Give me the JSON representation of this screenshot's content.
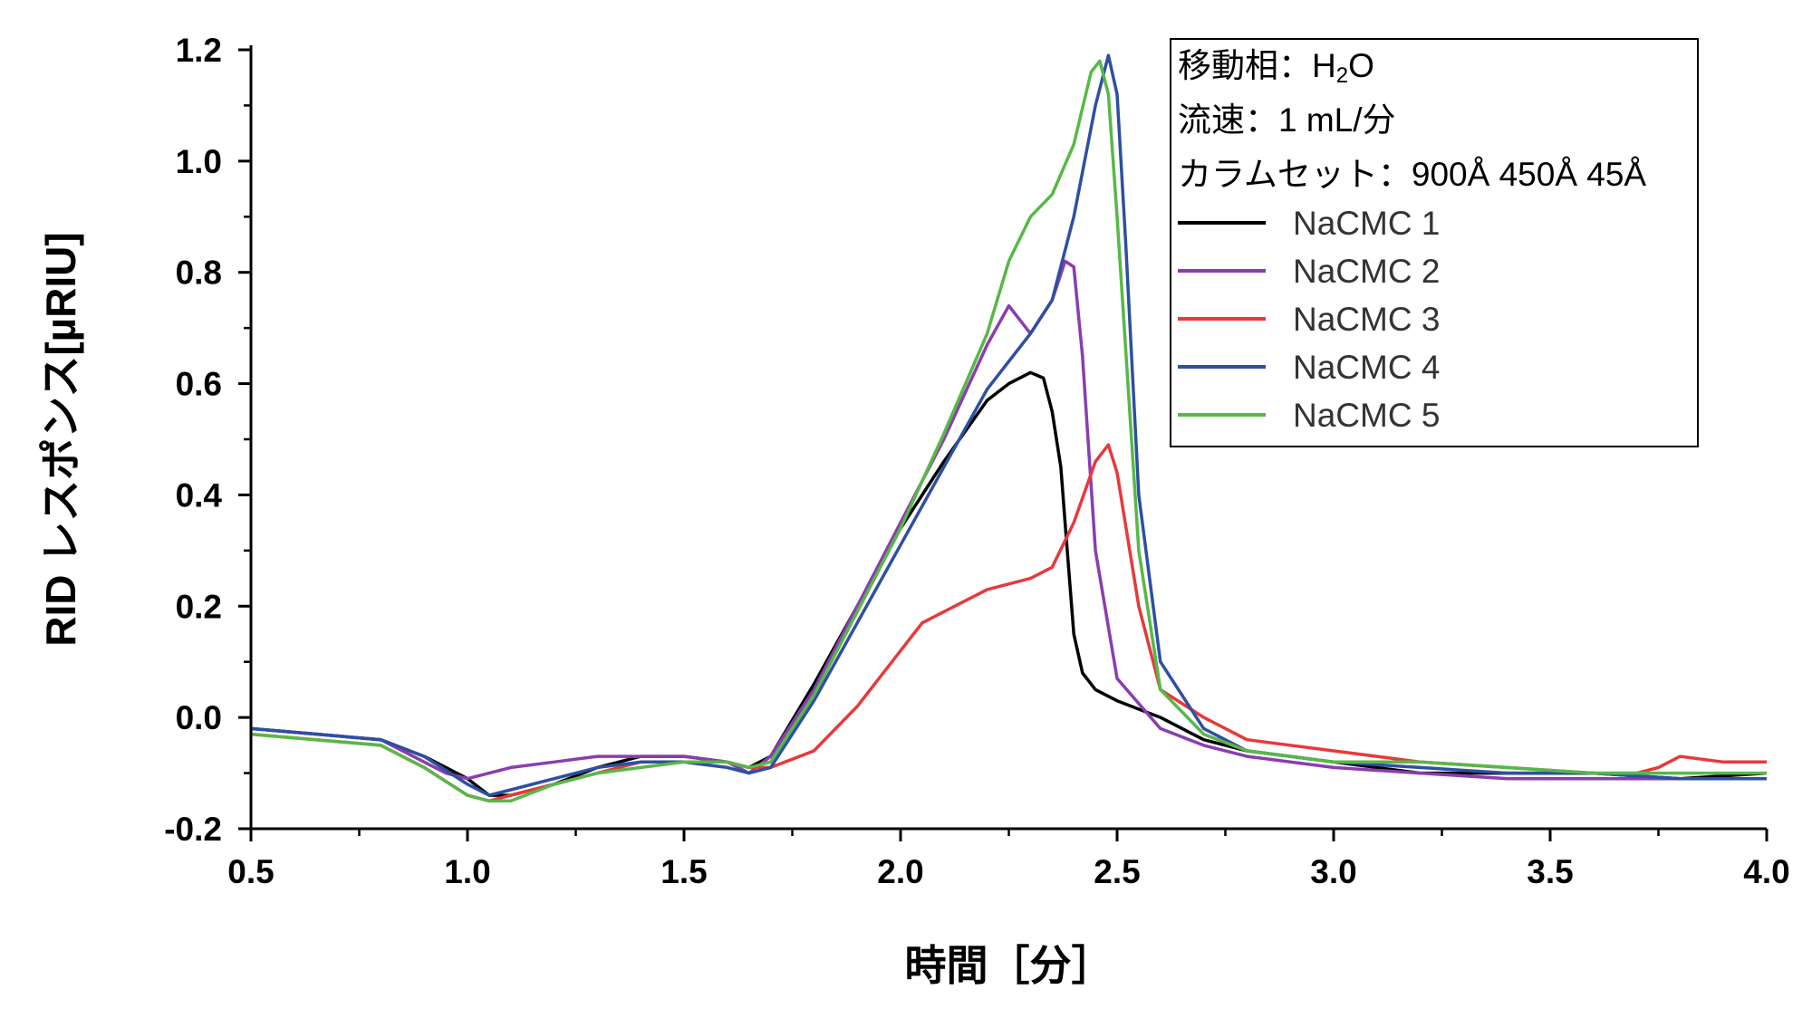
{
  "chart_data": {
    "type": "line",
    "xlabel": "時間［分］",
    "ylabel": "RID レスポンス[µRIU]",
    "xlim": [
      0.5,
      4.0
    ],
    "ylim": [
      -0.2,
      1.2
    ],
    "xticks": [
      "0.5",
      "1.0",
      "1.5",
      "2.0",
      "2.5",
      "3.0",
      "3.5",
      "4.0"
    ],
    "yticks": [
      "-0.2",
      "0.0",
      "0.2",
      "0.4",
      "0.6",
      "0.8",
      "1.0",
      "1.2"
    ],
    "grid": false,
    "legend": {
      "position": "top-right",
      "notes": [
        {
          "pre": "移動相：H",
          "sub": "2",
          "post": "O"
        },
        {
          "pre": "流速：1 mL/分",
          "sub": "",
          "post": ""
        },
        {
          "pre": "カラムセット：900Å 450Å 45Å",
          "sub": "",
          "post": ""
        }
      ]
    },
    "series": [
      {
        "name": "NaCMC 1",
        "color": "#000000",
        "x": [
          0.5,
          0.8,
          0.9,
          1.0,
          1.05,
          1.1,
          1.2,
          1.3,
          1.4,
          1.5,
          1.6,
          1.65,
          1.7,
          1.8,
          1.9,
          2.0,
          2.1,
          2.2,
          2.25,
          2.3,
          2.33,
          2.35,
          2.37,
          2.38,
          2.4,
          2.42,
          2.45,
          2.5,
          2.6,
          2.7,
          2.8,
          3.0,
          3.2,
          3.4,
          3.5,
          3.6,
          3.8,
          4.0
        ],
        "y": [
          -0.02,
          -0.04,
          -0.07,
          -0.11,
          -0.14,
          -0.14,
          -0.12,
          -0.09,
          -0.07,
          -0.07,
          -0.08,
          -0.09,
          -0.07,
          0.06,
          0.2,
          0.34,
          0.46,
          0.57,
          0.6,
          0.62,
          0.61,
          0.55,
          0.45,
          0.35,
          0.15,
          0.08,
          0.05,
          0.03,
          0.0,
          -0.04,
          -0.06,
          -0.08,
          -0.1,
          -0.1,
          -0.1,
          -0.1,
          -0.11,
          -0.1
        ]
      },
      {
        "name": "NaCMC 2",
        "color": "#8B3DAF",
        "x": [
          0.5,
          0.8,
          0.9,
          0.95,
          1.0,
          1.05,
          1.1,
          1.2,
          1.3,
          1.4,
          1.5,
          1.6,
          1.65,
          1.7,
          1.8,
          1.9,
          2.0,
          2.1,
          2.2,
          2.25,
          2.3,
          2.35,
          2.38,
          2.4,
          2.42,
          2.45,
          2.5,
          2.6,
          2.7,
          2.8,
          3.0,
          3.2,
          3.4,
          3.6,
          3.8,
          4.0
        ],
        "y": [
          -0.02,
          -0.04,
          -0.08,
          -0.1,
          -0.11,
          -0.1,
          -0.09,
          -0.08,
          -0.07,
          -0.07,
          -0.07,
          -0.08,
          -0.1,
          -0.07,
          0.05,
          0.2,
          0.35,
          0.5,
          0.67,
          0.74,
          0.69,
          0.75,
          0.82,
          0.81,
          0.65,
          0.3,
          0.07,
          -0.02,
          -0.05,
          -0.07,
          -0.09,
          -0.1,
          -0.11,
          -0.11,
          -0.11,
          -0.11
        ]
      },
      {
        "name": "NaCMC 3",
        "color": "#E8393B",
        "x": [
          0.5,
          0.8,
          0.9,
          1.0,
          1.05,
          1.1,
          1.2,
          1.3,
          1.4,
          1.5,
          1.6,
          1.65,
          1.7,
          1.8,
          1.9,
          2.0,
          2.05,
          2.1,
          2.2,
          2.3,
          2.35,
          2.4,
          2.45,
          2.48,
          2.5,
          2.55,
          2.6,
          2.7,
          2.8,
          3.0,
          3.2,
          3.4,
          3.6,
          3.7,
          3.75,
          3.8,
          3.9,
          4.0
        ],
        "y": [
          -0.03,
          -0.05,
          -0.09,
          -0.14,
          -0.15,
          -0.14,
          -0.12,
          -0.1,
          -0.08,
          -0.08,
          -0.08,
          -0.09,
          -0.09,
          -0.06,
          0.02,
          0.12,
          0.17,
          0.19,
          0.23,
          0.25,
          0.27,
          0.35,
          0.46,
          0.49,
          0.44,
          0.2,
          0.05,
          0.0,
          -0.04,
          -0.06,
          -0.08,
          -0.09,
          -0.1,
          -0.1,
          -0.09,
          -0.07,
          -0.08,
          -0.08
        ]
      },
      {
        "name": "NaCMC 4",
        "color": "#2E4FA2",
        "x": [
          0.5,
          0.8,
          0.9,
          1.0,
          1.05,
          1.1,
          1.2,
          1.3,
          1.4,
          1.5,
          1.6,
          1.65,
          1.7,
          1.8,
          1.9,
          2.0,
          2.1,
          2.2,
          2.3,
          2.35,
          2.4,
          2.45,
          2.48,
          2.5,
          2.52,
          2.55,
          2.6,
          2.7,
          2.8,
          3.0,
          3.2,
          3.4,
          3.6,
          3.8,
          4.0
        ],
        "y": [
          -0.02,
          -0.04,
          -0.07,
          -0.12,
          -0.14,
          -0.13,
          -0.11,
          -0.09,
          -0.08,
          -0.08,
          -0.09,
          -0.1,
          -0.09,
          0.03,
          0.17,
          0.31,
          0.45,
          0.59,
          0.69,
          0.75,
          0.9,
          1.1,
          1.19,
          1.12,
          0.85,
          0.4,
          0.1,
          -0.02,
          -0.06,
          -0.08,
          -0.09,
          -0.1,
          -0.1,
          -0.11,
          -0.11
        ]
      },
      {
        "name": "NaCMC 5",
        "color": "#57B847",
        "x": [
          0.5,
          0.8,
          0.9,
          1.0,
          1.05,
          1.1,
          1.2,
          1.3,
          1.4,
          1.5,
          1.6,
          1.65,
          1.7,
          1.8,
          1.9,
          2.0,
          2.1,
          2.2,
          2.25,
          2.3,
          2.35,
          2.4,
          2.44,
          2.46,
          2.48,
          2.5,
          2.55,
          2.6,
          2.7,
          2.8,
          3.0,
          3.2,
          3.4,
          3.6,
          3.8,
          4.0
        ],
        "y": [
          -0.03,
          -0.05,
          -0.09,
          -0.14,
          -0.15,
          -0.15,
          -0.12,
          -0.1,
          -0.09,
          -0.08,
          -0.08,
          -0.09,
          -0.08,
          0.04,
          0.19,
          0.34,
          0.51,
          0.69,
          0.82,
          0.9,
          0.94,
          1.03,
          1.16,
          1.18,
          1.12,
          0.9,
          0.3,
          0.05,
          -0.03,
          -0.06,
          -0.08,
          -0.08,
          -0.09,
          -0.1,
          -0.1,
          -0.1
        ]
      }
    ]
  }
}
